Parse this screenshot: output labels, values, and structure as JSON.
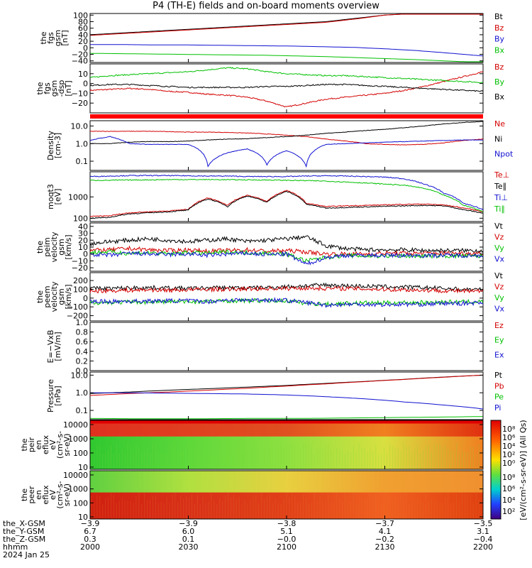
{
  "title": "P4 (TH-E) fields and on-board moments overview",
  "chart_data": [
    {
      "type": "line",
      "ylabel": [
        "the",
        "fgs",
        "gsm",
        "[nT]"
      ],
      "ylim": [
        -45,
        105
      ],
      "yticks": [
        "100",
        "80",
        "60",
        "40",
        "20",
        "0",
        "−20",
        "−40"
      ],
      "ytick_values": [
        100,
        80,
        60,
        40,
        20,
        0,
        -20,
        -40
      ],
      "x": [
        0,
        15,
        30,
        45,
        60,
        75,
        90,
        105,
        120,
        135,
        150,
        165,
        180,
        200
      ],
      "series": [
        {
          "name": "Bt",
          "color": "#000000",
          "values": [
            40,
            45,
            50,
            55,
            60,
            65,
            70,
            75,
            80,
            90,
            100,
            105,
            108,
            110
          ]
        },
        {
          "name": "Bz",
          "color": "#d40000",
          "values": [
            38,
            43,
            48,
            53,
            58,
            63,
            68,
            73,
            78,
            88,
            100,
            105,
            108,
            110
          ]
        },
        {
          "name": "By",
          "color": "#1010d0",
          "values": [
            10,
            10,
            9,
            9,
            8,
            7,
            6,
            5,
            3,
            1,
            -3,
            -8,
            -15,
            -25
          ]
        },
        {
          "name": "Bx",
          "color": "#00c000",
          "values": [
            -17,
            -18,
            -19,
            -20,
            -21,
            -22,
            -23,
            -25,
            -27,
            -30,
            -33,
            -36,
            -40,
            -45
          ]
        }
      ]
    },
    {
      "type": "line",
      "ylabel": [
        "the",
        "fgs",
        "gsm",
        "-dsp",
        "[nT]"
      ],
      "ylim": [
        -30,
        20
      ],
      "yticks": [
        "10",
        "0",
        "−10",
        "−20"
      ],
      "ytick_values": [
        10,
        0,
        -10,
        -20
      ],
      "x": [
        0,
        10,
        20,
        30,
        40,
        50,
        60,
        70,
        80,
        90,
        100,
        110,
        120,
        130,
        140,
        150,
        160,
        170,
        180,
        190,
        200
      ],
      "series": [
        {
          "name": "Bz",
          "color": "#d40000",
          "values": [
            -7,
            -6,
            -5,
            -6,
            -8,
            -9,
            -11,
            -12,
            -14,
            -18,
            -24,
            -20,
            -16,
            -14,
            -12,
            -10,
            -7,
            -3,
            2,
            7,
            12
          ]
        },
        {
          "name": "By",
          "color": "#00c000",
          "values": [
            6,
            8,
            9,
            10,
            11,
            12,
            14,
            16,
            15,
            12,
            10,
            9,
            8,
            8,
            7,
            6,
            5,
            4,
            3,
            2,
            1
          ]
        },
        {
          "name": "Bx",
          "color": "#000000",
          "values": [
            -2,
            -1,
            -1,
            -2,
            -3,
            -4,
            -4,
            -4,
            -4,
            -3,
            -3,
            -2,
            -1,
            -1,
            -2,
            -3,
            -4,
            -5,
            -6,
            -7,
            -8
          ]
        }
      ]
    },
    {
      "type": "line",
      "ylabel": [
        "Density",
        "[cm-3]"
      ],
      "scale": "log",
      "ylim": [
        0.03,
        20
      ],
      "yticks": [
        "10.0",
        "1.0",
        "0.1"
      ],
      "ytick_values": [
        10,
        1,
        0.1
      ],
      "x": [
        0,
        10,
        20,
        30,
        40,
        50,
        60,
        70,
        80,
        90,
        100,
        110,
        120,
        130,
        140,
        150,
        160,
        170,
        180,
        190,
        200
      ],
      "series": [
        {
          "name": "Ne",
          "color": "#d40000",
          "values": [
            5,
            5,
            5,
            5,
            4.8,
            4.5,
            4.5,
            4.3,
            4.0,
            3.5,
            3.0,
            2.5,
            1.8,
            1.4,
            1.0,
            0.9,
            0.85,
            0.9,
            1.1,
            1.5,
            1.8
          ]
        },
        {
          "name": "Ni",
          "color": "#000000",
          "values": [
            1.0,
            1.0,
            1.2,
            1.3,
            1.3,
            1.4,
            1.6,
            1.8,
            1.9,
            2.2,
            2.5,
            3.0,
            3.8,
            4.5,
            5.5,
            6.5,
            8.0,
            10,
            13,
            16,
            18
          ]
        },
        {
          "name": "Npot",
          "color": "#1010d0",
          "values": [
            1.5,
            2.5,
            1.0,
            0.9,
            0.9,
            0.9,
            0.05,
            0.3,
            0.5,
            0.06,
            0.4,
            0.05,
            0.9,
            1.0,
            1.1,
            1.2,
            1.3,
            1.4,
            1.5,
            1.6,
            1.6
          ]
        }
      ]
    },
    {
      "type": "line",
      "ylabel": [
        "moqt3",
        "[eV]"
      ],
      "scale": "log",
      "ylim": [
        70,
        15000
      ],
      "yticks": [
        "1000",
        "100"
      ],
      "ytick_values": [
        1000,
        100
      ],
      "x": [
        0,
        10,
        20,
        30,
        40,
        50,
        60,
        70,
        80,
        90,
        100,
        110,
        120,
        130,
        140,
        150,
        160,
        170,
        180,
        190,
        200
      ],
      "series": [
        {
          "name": "Te⊥",
          "color": "#d40000",
          "values": [
            120,
            130,
            180,
            200,
            220,
            260,
            900,
            400,
            1200,
            600,
            2000,
            500,
            350,
            380,
            400,
            420,
            450,
            460,
            420,
            300,
            200
          ]
        },
        {
          "name": "Te∥",
          "color": "#000000",
          "values": [
            100,
            110,
            160,
            180,
            200,
            240,
            800,
            350,
            1100,
            550,
            1800,
            450,
            300,
            320,
            340,
            360,
            380,
            400,
            380,
            250,
            170
          ]
        },
        {
          "name": "Ti⊥",
          "color": "#1010d0",
          "values": [
            9000,
            9500,
            10000,
            10000,
            10000,
            9800,
            9500,
            9500,
            9000,
            9000,
            9000,
            9500,
            9800,
            9500,
            9000,
            8500,
            7000,
            4000,
            1500,
            500,
            250
          ]
        },
        {
          "name": "Ti∥",
          "color": "#00c000",
          "values": [
            6000,
            6000,
            6200,
            6300,
            6500,
            6500,
            6500,
            6400,
            6300,
            6200,
            6000,
            5800,
            5500,
            5000,
            4500,
            4000,
            3500,
            2500,
            1200,
            400,
            200
          ]
        }
      ]
    },
    {
      "type": "line",
      "ylabel": [
        "the",
        "peim",
        "velocity",
        "gsm",
        "[km/s]"
      ],
      "ylim": [
        -25,
        45
      ],
      "yticks": [
        "40",
        "30",
        "20",
        "10",
        "0",
        "−10",
        "−20"
      ],
      "ytick_values": [
        40,
        30,
        20,
        10,
        0,
        -10,
        -20
      ],
      "x": [
        0,
        10,
        20,
        30,
        40,
        50,
        60,
        70,
        80,
        90,
        100,
        110,
        120,
        130,
        140,
        150,
        160,
        170,
        180,
        190,
        200
      ],
      "series": [
        {
          "name": "Vt",
          "color": "#000000",
          "values": [
            15,
            18,
            20,
            22,
            20,
            18,
            20,
            22,
            18,
            20,
            22,
            25,
            12,
            8,
            6,
            6,
            6,
            5,
            5,
            5,
            5
          ]
        },
        {
          "name": "Vz",
          "color": "#d40000",
          "values": [
            5,
            6,
            8,
            6,
            5,
            6,
            4,
            5,
            6,
            4,
            5,
            3,
            0,
            0,
            0,
            1,
            1,
            1,
            1,
            1,
            1
          ]
        },
        {
          "name": "Vy",
          "color": "#00c000",
          "values": [
            2,
            3,
            1,
            2,
            0,
            2,
            1,
            3,
            2,
            1,
            0,
            -10,
            -5,
            -2,
            -3,
            -3,
            -3,
            -3,
            -3,
            -3,
            -3
          ]
        },
        {
          "name": "Vx",
          "color": "#1010d0",
          "values": [
            0,
            -2,
            1,
            0,
            -1,
            0,
            -2,
            0,
            1,
            -1,
            0,
            -15,
            -5,
            -2,
            -2,
            -2,
            -2,
            -2,
            -2,
            -2,
            -2
          ]
        }
      ]
    },
    {
      "type": "line",
      "ylabel": [
        "the",
        "peem",
        "velocity",
        "gsm",
        "[km/s]"
      ],
      "ylim": [
        -260,
        290
      ],
      "yticks": [
        "200",
        "100",
        "0",
        "−100",
        "−200"
      ],
      "ytick_values": [
        200,
        100,
        0,
        -100,
        -200
      ],
      "x": [
        0,
        10,
        20,
        30,
        40,
        50,
        60,
        70,
        80,
        90,
        100,
        110,
        120,
        130,
        140,
        150,
        160,
        170,
        180,
        190,
        200
      ],
      "series": [
        {
          "name": "Vt",
          "color": "#000000",
          "values": [
            110,
            110,
            115,
            120,
            115,
            110,
            115,
            120,
            115,
            120,
            130,
            140,
            150,
            140,
            135,
            130,
            125,
            120,
            110,
            100,
            95
          ]
        },
        {
          "name": "Vz",
          "color": "#d40000",
          "values": [
            80,
            85,
            90,
            95,
            90,
            95,
            100,
            100,
            105,
            110,
            110,
            115,
            110,
            110,
            105,
            100,
            95,
            90,
            85,
            80,
            75
          ]
        },
        {
          "name": "Vy",
          "color": "#00c000",
          "values": [
            -50,
            -50,
            -45,
            -45,
            -40,
            -40,
            -40,
            -30,
            -30,
            -30,
            -30,
            -60,
            -70,
            -60,
            -55,
            -55,
            -50,
            -50,
            -45,
            -45,
            -40
          ]
        },
        {
          "name": "Vx",
          "color": "#1010d0",
          "values": [
            -40,
            -40,
            -35,
            -35,
            -30,
            -30,
            -40,
            -20,
            -25,
            -20,
            -25,
            -50,
            -80,
            -70,
            -70,
            -75,
            -70,
            -70,
            -60,
            -60,
            -50
          ]
        }
      ]
    },
    {
      "type": "line",
      "ylabel": [
        "E=−VxB",
        "[mV/m]"
      ],
      "ylim": [
        0,
        1.0
      ],
      "yticks": [
        "1.0",
        "0.8",
        "0.6",
        "0.4",
        "0.2",
        "0.0"
      ],
      "ytick_values": [
        1.0,
        0.8,
        0.6,
        0.4,
        0.2,
        0.0
      ],
      "x": [],
      "series": [
        {
          "name": "Ez",
          "color": "#d40000",
          "values": []
        },
        {
          "name": "Ey",
          "color": "#00c000",
          "values": []
        },
        {
          "name": "Ex",
          "color": "#1010d0",
          "values": []
        }
      ]
    },
    {
      "type": "line",
      "ylabel": [
        "Pressure",
        "[nPa]"
      ],
      "scale": "log",
      "ylim": [
        0.03,
        15
      ],
      "yticks": [
        "10.0",
        "1.0",
        "0.1"
      ],
      "ytick_values": [
        10,
        1,
        0.1
      ],
      "x": [
        0,
        20,
        40,
        60,
        80,
        100,
        120,
        140,
        160,
        180,
        200
      ],
      "series": [
        {
          "name": "Pt",
          "color": "#000000",
          "values": [
            0.9,
            1.1,
            1.4,
            1.7,
            2.1,
            2.6,
            3.4,
            4.4,
            5.8,
            7.8,
            10
          ]
        },
        {
          "name": "Pb",
          "color": "#d40000",
          "values": [
            0.7,
            0.9,
            1.1,
            1.4,
            1.8,
            2.4,
            3.2,
            4.3,
            5.7,
            7.6,
            10
          ]
        },
        {
          "name": "Pe",
          "color": "#00c000",
          "values": [
            0.035,
            0.034,
            0.034,
            0.034,
            0.035,
            0.035,
            0.036,
            0.038,
            0.04,
            0.042,
            0.045
          ]
        },
        {
          "name": "Pi",
          "color": "#1010d0",
          "values": [
            1.0,
            1.0,
            0.95,
            0.9,
            0.85,
            0.75,
            0.6,
            0.45,
            0.3,
            0.2,
            0.12
          ]
        }
      ]
    },
    {
      "type": "heatmap",
      "ylabel": [
        "the",
        "peir",
        "en",
        "eflux",
        "eV",
        "(cm²-s-",
        "sr-eV)"
      ],
      "scale": "log",
      "ylim": [
        7,
        20000
      ],
      "yticks": [
        "10000",
        "1000",
        "100",
        "10"
      ],
      "ytick_values": [
        10000,
        1000,
        100,
        10
      ],
      "rows_energy_eV": [
        10,
        30,
        100,
        300,
        1000,
        3000,
        10000,
        20000
      ],
      "colors_by_time": {
        "x": [
          0,
          50,
          100,
          150,
          200
        ],
        "low": [
          "#30c830",
          "#5ed83a",
          "#8ee040",
          "#d8e040",
          "#f08020"
        ],
        "high": [
          "#e03020",
          "#e04020",
          "#e05020",
          "#f08020",
          "#e03010"
        ]
      }
    },
    {
      "type": "heatmap",
      "ylabel": [
        "the",
        "peer",
        "en",
        "eflux",
        "eV",
        "(cm²-s-",
        "sr-eV)"
      ],
      "scale": "log",
      "ylim": [
        7,
        20000
      ],
      "yticks": [
        "10000",
        "1000",
        "100",
        "10"
      ],
      "ytick_values": [
        10000,
        1000,
        100,
        10
      ],
      "colors_by_time": {
        "x": [
          0,
          50,
          100,
          150,
          200
        ],
        "low": [
          "#d02010",
          "#d83018",
          "#e04018",
          "#f06020",
          "#e04010"
        ],
        "high": [
          "#60d040",
          "#b0e040",
          "#e8d040",
          "#f0a030",
          "#f09030"
        ]
      }
    }
  ],
  "legends": [
    [
      "Bt",
      "Bz",
      "By",
      "Bx"
    ],
    [
      "Bz",
      "By",
      "Bx"
    ],
    [
      "Ne",
      "Ni",
      "Npot"
    ],
    [
      "Te⊥",
      "Te∥",
      "Ti⊥",
      "Ti∥"
    ],
    [
      "Vt",
      "Vz",
      "Vy",
      "Vx"
    ],
    [
      "Vt",
      "Vz",
      "Vy",
      "Vx"
    ],
    [
      "Ez",
      "Ey",
      "Ex"
    ],
    [
      "Pt",
      "Pb",
      "Pe",
      "Pi"
    ]
  ],
  "colorbar": {
    "label": "[eV/(cm²-s-sr-eV)] (All Qs)",
    "upper_ticks": [
      "10⁸",
      "10⁶",
      "10⁴",
      "10²",
      "10⁰"
    ],
    "lower_ticks": [
      "10⁸",
      "10⁶",
      "10⁴",
      "10²"
    ]
  },
  "xaxis": {
    "ticks": [
      "2000",
      "2030",
      "2100",
      "2130",
      "2200"
    ],
    "rows": [
      {
        "label": "the_X-GSM",
        "values": [
          "−3.9",
          "−3.9",
          "−3.8",
          "−3.7",
          "−3.5"
        ]
      },
      {
        "label": "the_Y-GSM",
        "values": [
          "6.7",
          "6.0",
          "5.1",
          "4.1",
          "3.1"
        ]
      },
      {
        "label": "the_Z-GSM",
        "values": [
          "0.3",
          "0.1",
          "−0.0",
          "−0.2",
          "−0.4"
        ]
      },
      {
        "label": "hhmm",
        "values": [
          "2000",
          "2030",
          "2100",
          "2130",
          "2200"
        ]
      }
    ],
    "date": "2024 Jan 25"
  },
  "colors": {
    "red": "#d40000",
    "green": "#00c000",
    "blue": "#1010d0",
    "black": "#000000"
  }
}
